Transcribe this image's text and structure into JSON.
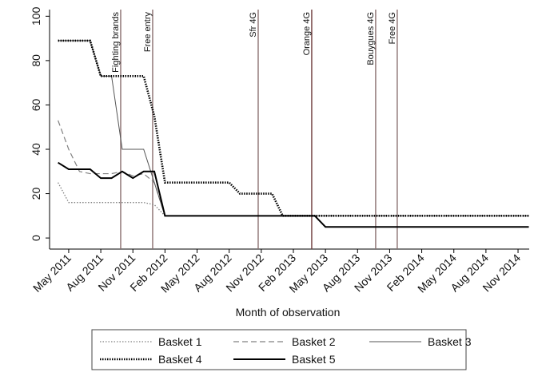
{
  "chart_data": {
    "type": "line",
    "x_label": "Month of observation",
    "x": [
      2011.25,
      2011.333,
      2011.417,
      2011.5,
      2011.583,
      2011.667,
      2011.75,
      2011.833,
      2011.917,
      2012,
      2012.083,
      2012.167,
      2012.25,
      2012.333,
      2012.417,
      2012.5,
      2012.583,
      2012.667,
      2012.75,
      2012.833,
      2012.917,
      2013,
      2013.083,
      2013.167,
      2013.25,
      2013.333,
      2013.417,
      2013.5,
      2013.583,
      2013.667,
      2013.75,
      2013.833,
      2013.917,
      2014,
      2014.083,
      2014.167,
      2014.25,
      2014.333,
      2014.417,
      2014.5,
      2014.583,
      2014.667,
      2014.75,
      2014.833,
      2014.917
    ],
    "series": [
      {
        "name": "Basket 1",
        "color": "#808080",
        "line_style": "dotted",
        "values": [
          25,
          16,
          16,
          16,
          16,
          16,
          16,
          16,
          16,
          15,
          10,
          10,
          10,
          10,
          10,
          10,
          10,
          10,
          10,
          10,
          10,
          10,
          10,
          10,
          10,
          10,
          10,
          10,
          10,
          10,
          10,
          10,
          10,
          10,
          10,
          10,
          10,
          10,
          10,
          10,
          10,
          10,
          10,
          10,
          10
        ]
      },
      {
        "name": "Basket 2",
        "color": "#808080",
        "line_style": "dashed",
        "values": [
          53,
          40,
          30,
          29,
          29,
          29,
          30,
          28,
          29,
          25,
          10,
          10,
          10,
          10,
          10,
          10,
          10,
          10,
          10,
          10,
          10,
          10,
          10,
          10,
          10,
          10,
          10,
          10,
          10,
          10,
          10,
          10,
          10,
          10,
          10,
          10,
          10,
          10,
          10,
          10,
          10,
          10,
          10,
          10,
          10
        ]
      },
      {
        "name": "Basket 3",
        "color": "#555555",
        "line_style": "solid",
        "values": [
          89,
          89,
          89,
          89,
          73,
          73,
          40,
          40,
          40,
          25,
          10,
          10,
          10,
          10,
          10,
          10,
          10,
          10,
          10,
          10,
          10,
          10,
          10,
          10,
          10,
          5,
          5,
          5,
          5,
          5,
          5,
          5,
          5,
          5,
          5,
          5,
          5,
          5,
          5,
          5,
          5,
          5,
          5,
          5,
          5
        ]
      },
      {
        "name": "Basket 4",
        "color": "#000000",
        "line_style": "thick-dotted",
        "values": [
          89,
          89,
          89,
          89,
          73,
          73,
          73,
          73,
          73,
          55,
          25,
          25,
          25,
          25,
          25,
          25,
          25,
          20,
          20,
          20,
          20,
          10,
          10,
          10,
          10,
          10,
          10,
          10,
          10,
          10,
          10,
          10,
          10,
          10,
          10,
          10,
          10,
          10,
          10,
          10,
          10,
          10,
          10,
          10,
          10
        ]
      },
      {
        "name": "Basket 5",
        "color": "#000000",
        "line_style": "thick-solid",
        "values": [
          34,
          31,
          31,
          31,
          27,
          27,
          30,
          27,
          30,
          30,
          10,
          10,
          10,
          10,
          10,
          10,
          10,
          10,
          10,
          10,
          10,
          10,
          10,
          10,
          10,
          5,
          5,
          5,
          5,
          5,
          5,
          5,
          5,
          5,
          5,
          5,
          5,
          5,
          5,
          5,
          5,
          5,
          5,
          5,
          5
        ]
      }
    ],
    "events": [
      {
        "label": "Fighting brands",
        "x": 2011.738,
        "color": "#8a7070"
      },
      {
        "label": "Free entry",
        "x": 2011.987,
        "color": "#8a7070"
      },
      {
        "label": "Sfr 4G",
        "x": 2012.809,
        "color": "#8a7070"
      },
      {
        "label": "Orange 4G",
        "x": 2013.226,
        "color": "#6e3c3c"
      },
      {
        "label": "Bouygues 4G",
        "x": 2013.724,
        "color": "#8a7070"
      },
      {
        "label": "Free 4G",
        "x": 2013.892,
        "color": "#8a7070"
      }
    ],
    "xlim": [
      2011.184,
      2014.92
    ],
    "xticks": [
      {
        "value": 2011.333,
        "label": "May 2011"
      },
      {
        "value": 2011.583,
        "label": "Aug 2011"
      },
      {
        "value": 2011.833,
        "label": "Nov 2011"
      },
      {
        "value": 2012.083,
        "label": "Feb 2012"
      },
      {
        "value": 2012.333,
        "label": "May 2012"
      },
      {
        "value": 2012.583,
        "label": "Aug 2012"
      },
      {
        "value": 2012.833,
        "label": "Nov 2012"
      },
      {
        "value": 2013.083,
        "label": "Feb 2013"
      },
      {
        "value": 2013.333,
        "label": "May 2013"
      },
      {
        "value": 2013.583,
        "label": "Aug 2013"
      },
      {
        "value": 2013.833,
        "label": "Nov 2013"
      },
      {
        "value": 2014.083,
        "label": "Feb 2014"
      },
      {
        "value": 2014.333,
        "label": "May 2014"
      },
      {
        "value": 2014.583,
        "label": "Aug 2014"
      },
      {
        "value": 2014.833,
        "label": "Nov 2014"
      }
    ],
    "ylim": [
      -5,
      103
    ],
    "yticks": [
      0,
      20,
      40,
      60,
      80,
      100
    ],
    "legend": "bottom"
  }
}
